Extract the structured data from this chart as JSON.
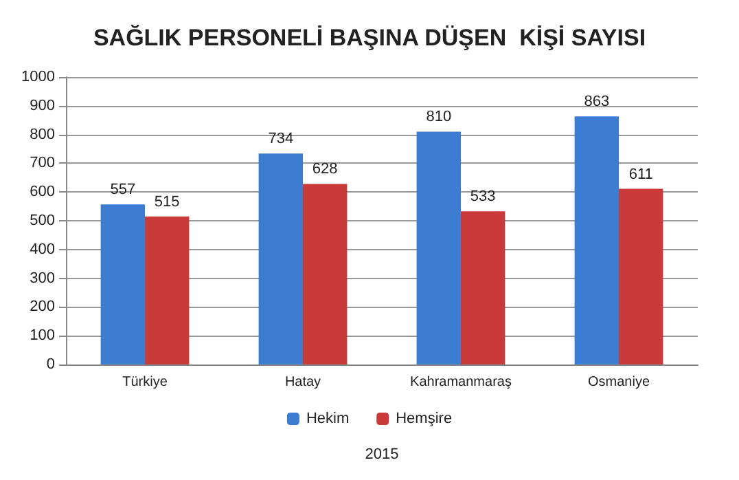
{
  "chart_data": {
    "type": "bar",
    "title": "SAĞLIK PERSONELİ BAŞINA DÜŞEN  KİŞİ SAYISI",
    "xlabel": "2015",
    "categories": [
      "Türkiye",
      "Hatay",
      "Kahramanmaraş",
      "Osmaniye"
    ],
    "series": [
      {
        "name": "Hekim",
        "color": "#3c7dd1",
        "values": [
          557,
          734,
          810,
          863
        ]
      },
      {
        "name": "Hemşire",
        "color": "#c93b3b",
        "values": [
          515,
          628,
          533,
          611
        ]
      }
    ],
    "ylim": [
      0,
      1000
    ],
    "yticks": [
      0,
      100,
      200,
      300,
      400,
      500,
      600,
      700,
      800,
      900,
      1000
    ],
    "grid": "y",
    "legend": "bottom",
    "data_labels": true
  }
}
